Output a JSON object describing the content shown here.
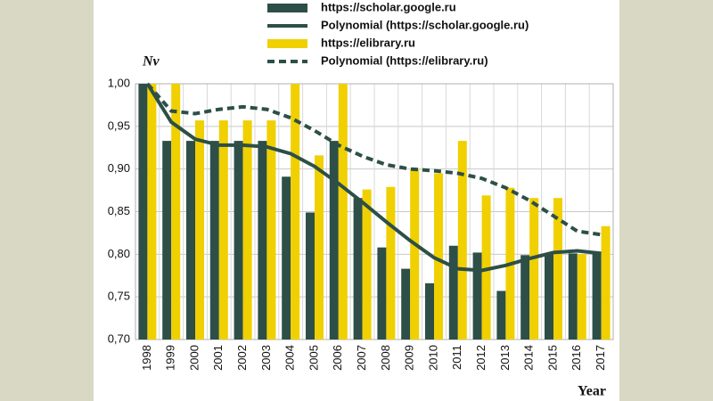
{
  "chart_data": {
    "type": "bar",
    "y_label": "Nv",
    "x_label": "Year",
    "categories": [
      "1998",
      "1999",
      "2000",
      "2001",
      "2002",
      "2003",
      "2004",
      "2005",
      "2006",
      "2007",
      "2008",
      "2009",
      "2010",
      "2011",
      "2012",
      "2013",
      "2014",
      "2015",
      "2016",
      "2017"
    ],
    "series": [
      {
        "name": "https://scholar.google.ru",
        "type": "bar",
        "color": "#2d4f47",
        "values": [
          1.0,
          0.933,
          0.933,
          0.933,
          0.933,
          0.933,
          0.891,
          0.849,
          0.933,
          0.866,
          0.808,
          0.783,
          0.766,
          0.81,
          0.802,
          0.757,
          0.799,
          0.8,
          0.801,
          0.802
        ]
      },
      {
        "name": "Polynomial (https://scholar.google.ru)",
        "type": "line",
        "color": "#2d4f47",
        "dashed": false,
        "values": [
          1.0,
          0.955,
          0.935,
          0.928,
          0.928,
          0.926,
          0.918,
          0.903,
          0.883,
          0.861,
          0.838,
          0.816,
          0.796,
          0.783,
          0.781,
          0.787,
          0.795,
          0.802,
          0.804,
          0.801
        ]
      },
      {
        "name": "https://elibrary.ru",
        "type": "bar",
        "color": "#f0d000",
        "values": [
          1.0,
          1.0,
          0.957,
          0.957,
          0.957,
          0.957,
          1.0,
          0.916,
          1.0,
          0.876,
          0.879,
          0.9,
          0.895,
          0.933,
          0.869,
          0.878,
          0.866,
          0.866,
          0.8,
          0.833
        ]
      },
      {
        "name": "Polynomial (https://elibrary.ru)",
        "type": "line",
        "color": "#2d4f47",
        "dashed": true,
        "values": [
          1.0,
          0.968,
          0.965,
          0.97,
          0.973,
          0.97,
          0.96,
          0.945,
          0.928,
          0.915,
          0.905,
          0.9,
          0.898,
          0.895,
          0.889,
          0.878,
          0.863,
          0.845,
          0.827,
          0.823
        ]
      }
    ],
    "ylim": [
      0.7,
      1.0
    ],
    "yticks": [
      {
        "value": 0.7,
        "label": "0,70"
      },
      {
        "value": 0.75,
        "label": "0,75"
      },
      {
        "value": 0.8,
        "label": "0,80"
      },
      {
        "value": 0.85,
        "label": "0,85"
      },
      {
        "value": 0.9,
        "label": "0,90"
      },
      {
        "value": 0.95,
        "label": "0,95"
      },
      {
        "value": 1.0,
        "label": "1,00"
      }
    ],
    "grid": true,
    "legend": "top"
  }
}
